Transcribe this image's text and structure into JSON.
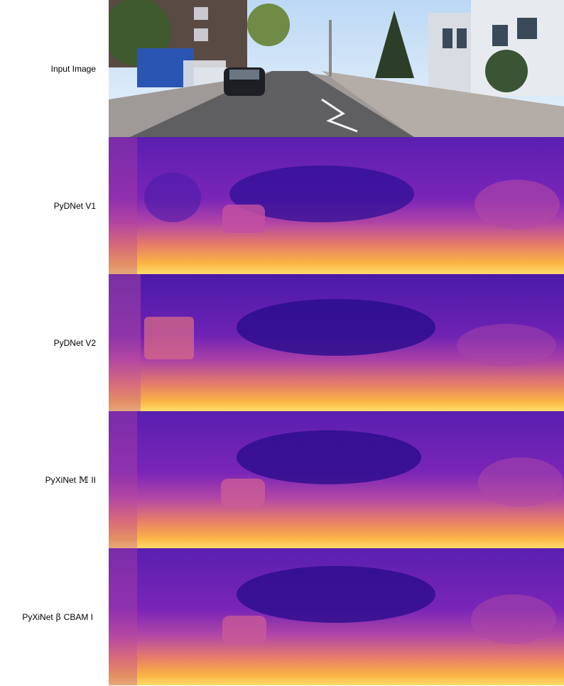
{
  "rows": [
    {
      "id": "input",
      "label": "Input Image"
    },
    {
      "id": "pydnet_v1",
      "label": "PyDNet V1"
    },
    {
      "id": "pydnet_v2",
      "label": "PyDNet V2"
    },
    {
      "id": "pyxinet_m2",
      "label_prefix": "PyXiNet",
      "label_symbol": "𝕄",
      "label_suffix": "II"
    },
    {
      "id": "pyxinet_b_cbam",
      "label_prefix": "PyXiNet",
      "label_symbol": "β",
      "label_suffix": "CBAM I"
    }
  ],
  "colors": {
    "depth_far": "#2a0c8c",
    "depth_mid": "#9a2fb5",
    "depth_near": "#f0a040",
    "depth_closest": "#fde06a",
    "sky": "#cfe3f7",
    "road": "#6b6a6c",
    "sidewalk": "#b9b3ae"
  }
}
